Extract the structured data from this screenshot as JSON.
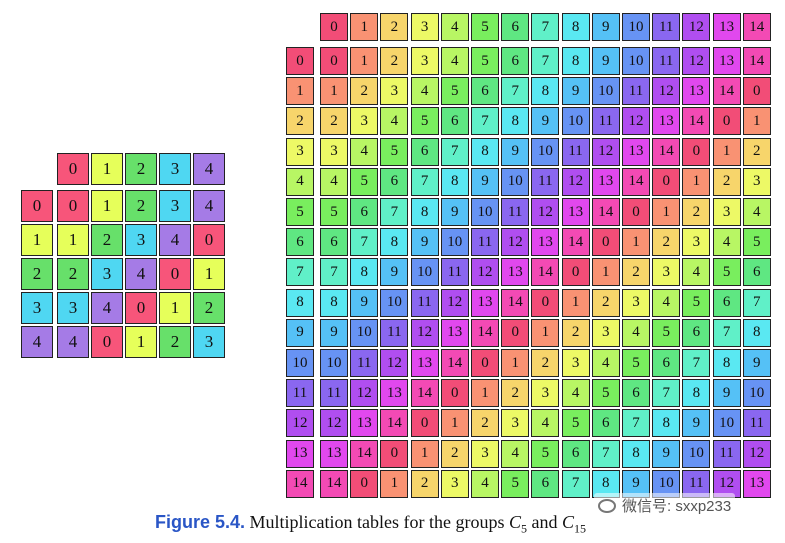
{
  "tables": [
    {
      "name": "C5",
      "order": 5
    },
    {
      "name": "C15",
      "order": 15
    }
  ],
  "palette": {
    "C5": [
      "#f7557a",
      "#e6ff5a",
      "#67e06a",
      "#4fd7f2",
      "#a57be6"
    ],
    "C15": [
      "#f24d77",
      "#f99273",
      "#f7d56b",
      "#edf966",
      "#b8f664",
      "#79ee5e",
      "#5fe782",
      "#60f0c8",
      "#5ae8f2",
      "#55c1f6",
      "#6793f4",
      "#8a67f0",
      "#b04ef0",
      "#e148ee",
      "#f34ab4"
    ]
  },
  "caption": {
    "label": "Figure 5.4.",
    "text": "Multiplication tables for the groups",
    "group_a": "C",
    "group_a_sub": "5",
    "conj": "and",
    "group_b": "C",
    "group_b_sub": "15"
  },
  "watermark": {
    "text": "微信号: sxxp233",
    "icon": "wechat-icon"
  }
}
